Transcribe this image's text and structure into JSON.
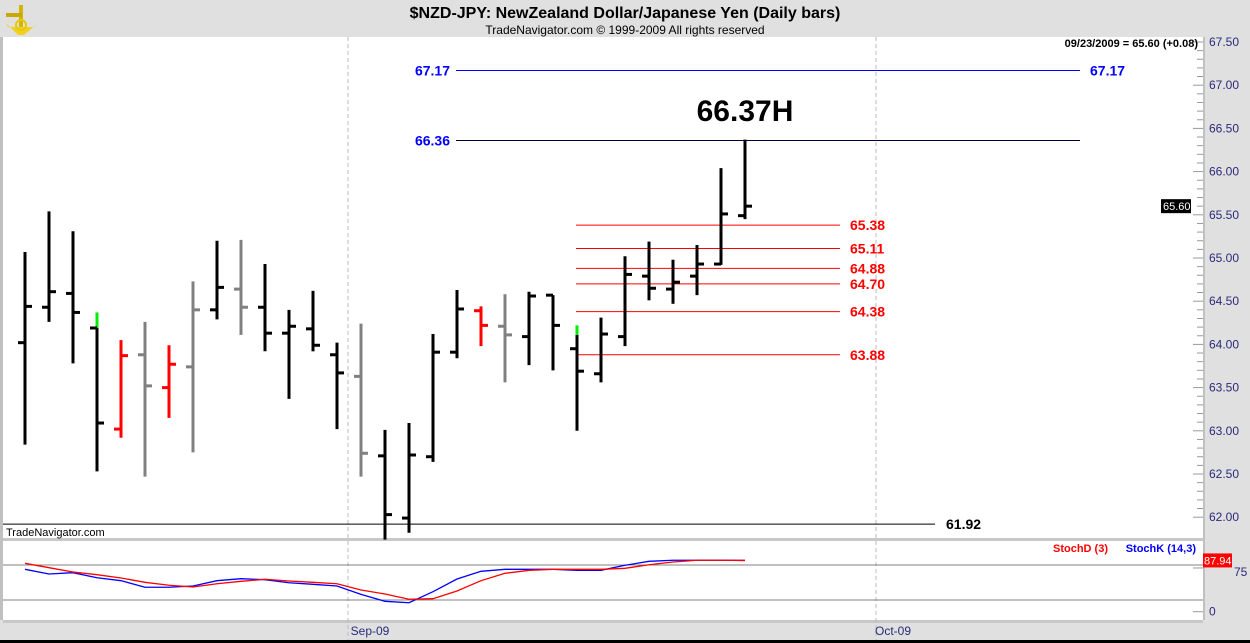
{
  "header": {
    "title": "$NZD-JPY:  NewZealand Dollar/Japanese Yen  (Daily bars)",
    "subtitle": "TradeNavigator.com © 1999-2009 All rights reserved",
    "logo_icon": "sextant-icon"
  },
  "quote_readout": "09/23/2009 = 65.60 (+0.08)",
  "watermark": "TradeNavigator.com",
  "last_price_tag": "65.60",
  "stoch_last_tag": "87.94",
  "colors": {
    "up": "#000000",
    "down_red": "#ff0000",
    "gray": "#808080",
    "marker": "#00ee00",
    "blue": "#0000ff",
    "red": "#ff0000",
    "axis": "#2a2a7a"
  },
  "chart_data": [
    {
      "type": "ohlc",
      "title": "$NZD-JPY Daily bars",
      "ylim": [
        61.75,
        67.5
      ],
      "yticks": [
        "67.50",
        "67.00",
        "66.50",
        "66.00",
        "65.50",
        "65.00",
        "64.50",
        "64.00",
        "63.50",
        "63.00",
        "62.50",
        "62.00"
      ],
      "xticks": [
        "Sep-09",
        "Oct-09"
      ],
      "bars": [
        {
          "o": 64.02,
          "h": 65.07,
          "l": 62.84,
          "c": 64.44,
          "color": "black"
        },
        {
          "o": 64.43,
          "h": 65.54,
          "l": 64.26,
          "c": 64.61,
          "color": "black"
        },
        {
          "o": 64.59,
          "h": 65.31,
          "l": 63.78,
          "c": 64.37,
          "color": "black"
        },
        {
          "o": 64.19,
          "h": 64.37,
          "l": 62.53,
          "c": 63.09,
          "color": "black",
          "marker_top": 64.19
        },
        {
          "o": 63.02,
          "h": 64.05,
          "l": 62.92,
          "c": 63.87,
          "color": "red"
        },
        {
          "o": 63.88,
          "h": 64.26,
          "l": 62.47,
          "c": 63.52,
          "color": "gray"
        },
        {
          "o": 63.5,
          "h": 63.99,
          "l": 63.15,
          "c": 63.77,
          "color": "red"
        },
        {
          "o": 63.74,
          "h": 64.73,
          "l": 62.75,
          "c": 64.4,
          "color": "gray"
        },
        {
          "o": 64.4,
          "h": 65.2,
          "l": 64.29,
          "c": 64.66,
          "color": "black"
        },
        {
          "o": 64.64,
          "h": 65.21,
          "l": 64.11,
          "c": 64.43,
          "color": "gray"
        },
        {
          "o": 64.43,
          "h": 64.93,
          "l": 63.92,
          "c": 64.13,
          "color": "black"
        },
        {
          "o": 64.13,
          "h": 64.4,
          "l": 63.37,
          "c": 64.21,
          "color": "black"
        },
        {
          "o": 64.18,
          "h": 64.62,
          "l": 63.92,
          "c": 63.99,
          "color": "black"
        },
        {
          "o": 63.88,
          "h": 64.02,
          "l": 63.02,
          "c": 63.67,
          "color": "black"
        },
        {
          "o": 63.63,
          "h": 64.24,
          "l": 62.47,
          "c": 62.74,
          "color": "gray"
        },
        {
          "o": 62.71,
          "h": 63.01,
          "l": 61.74,
          "c": 62.03,
          "color": "black"
        },
        {
          "o": 61.99,
          "h": 63.09,
          "l": 61.82,
          "c": 62.72,
          "color": "black"
        },
        {
          "o": 62.7,
          "h": 64.12,
          "l": 62.64,
          "c": 63.91,
          "color": "black"
        },
        {
          "o": 63.91,
          "h": 64.63,
          "l": 63.84,
          "c": 64.41,
          "color": "black"
        },
        {
          "o": 64.39,
          "h": 64.44,
          "l": 63.98,
          "c": 64.22,
          "color": "red"
        },
        {
          "o": 64.21,
          "h": 64.58,
          "l": 63.56,
          "c": 64.11,
          "color": "gray"
        },
        {
          "o": 64.09,
          "h": 64.61,
          "l": 63.76,
          "c": 64.56,
          "color": "black"
        },
        {
          "o": 64.57,
          "h": 64.57,
          "l": 63.7,
          "c": 64.22,
          "color": "black"
        },
        {
          "o": 63.95,
          "h": 64.22,
          "l": 63.0,
          "c": 63.69,
          "color": "black",
          "marker_top": 64.11
        },
        {
          "o": 63.66,
          "h": 64.31,
          "l": 63.56,
          "c": 64.12,
          "color": "black"
        },
        {
          "o": 64.09,
          "h": 65.02,
          "l": 63.98,
          "c": 64.81,
          "color": "black"
        },
        {
          "o": 64.79,
          "h": 65.19,
          "l": 64.51,
          "c": 64.65,
          "color": "black"
        },
        {
          "o": 64.64,
          "h": 64.98,
          "l": 64.47,
          "c": 64.72,
          "color": "black"
        },
        {
          "o": 64.79,
          "h": 65.15,
          "l": 64.57,
          "c": 64.93,
          "color": "black"
        },
        {
          "o": 64.93,
          "h": 66.04,
          "l": 64.92,
          "c": 65.51,
          "color": "black"
        },
        {
          "o": 65.49,
          "h": 66.37,
          "l": 65.45,
          "c": 65.6,
          "color": "black"
        }
      ],
      "annotations": {
        "high_label": "66.37H",
        "target_levels": [
          {
            "value": 67.17,
            "label": "67.17"
          }
        ],
        "high_level": {
          "value": 66.36,
          "label": "66.36"
        },
        "red_levels": [
          {
            "value": 65.38,
            "label": "65.38"
          },
          {
            "value": 65.11,
            "label": "65.11"
          },
          {
            "value": 64.88,
            "label": "64.88"
          },
          {
            "value": 64.7,
            "label": "64.70"
          },
          {
            "value": 64.38,
            "label": "64.38"
          },
          {
            "value": 63.88,
            "label": "63.88"
          }
        ],
        "support_level": {
          "value": 61.92,
          "label": "61.92"
        }
      }
    },
    {
      "type": "line",
      "title": "Stochastic",
      "ylim": [
        0,
        100
      ],
      "yticks": [
        "75",
        "0"
      ],
      "reference_lines": [
        80,
        20
      ],
      "series": [
        {
          "name": "StochD (3)",
          "color": "#ff0000",
          "values": [
            83.0,
            75.5,
            68.1,
            63.5,
            57.8,
            50.4,
            45.3,
            42.4,
            48.0,
            52.1,
            55.6,
            52.7,
            50.4,
            48.0,
            37.2,
            30.4,
            21.3,
            22.3,
            35.5,
            53.2,
            65.9,
            71.0,
            72.7,
            72.7,
            72.7,
            74.4,
            80.6,
            85.2,
            88.2,
            88.2,
            87.94
          ]
        },
        {
          "name": "StochK (14,3)",
          "color": "#0000ff",
          "values": [
            72.7,
            64.7,
            66.9,
            58.3,
            53.2,
            41.9,
            41.9,
            44.1,
            53.2,
            56.6,
            54.9,
            49.7,
            47.0,
            44.1,
            29.8,
            17.8,
            15.4,
            34.3,
            56.1,
            69.3,
            72.7,
            72.7,
            72.7,
            71.0,
            71.0,
            79.6,
            86.4,
            88.2,
            88.2,
            88.2,
            87.9
          ]
        }
      ]
    }
  ]
}
